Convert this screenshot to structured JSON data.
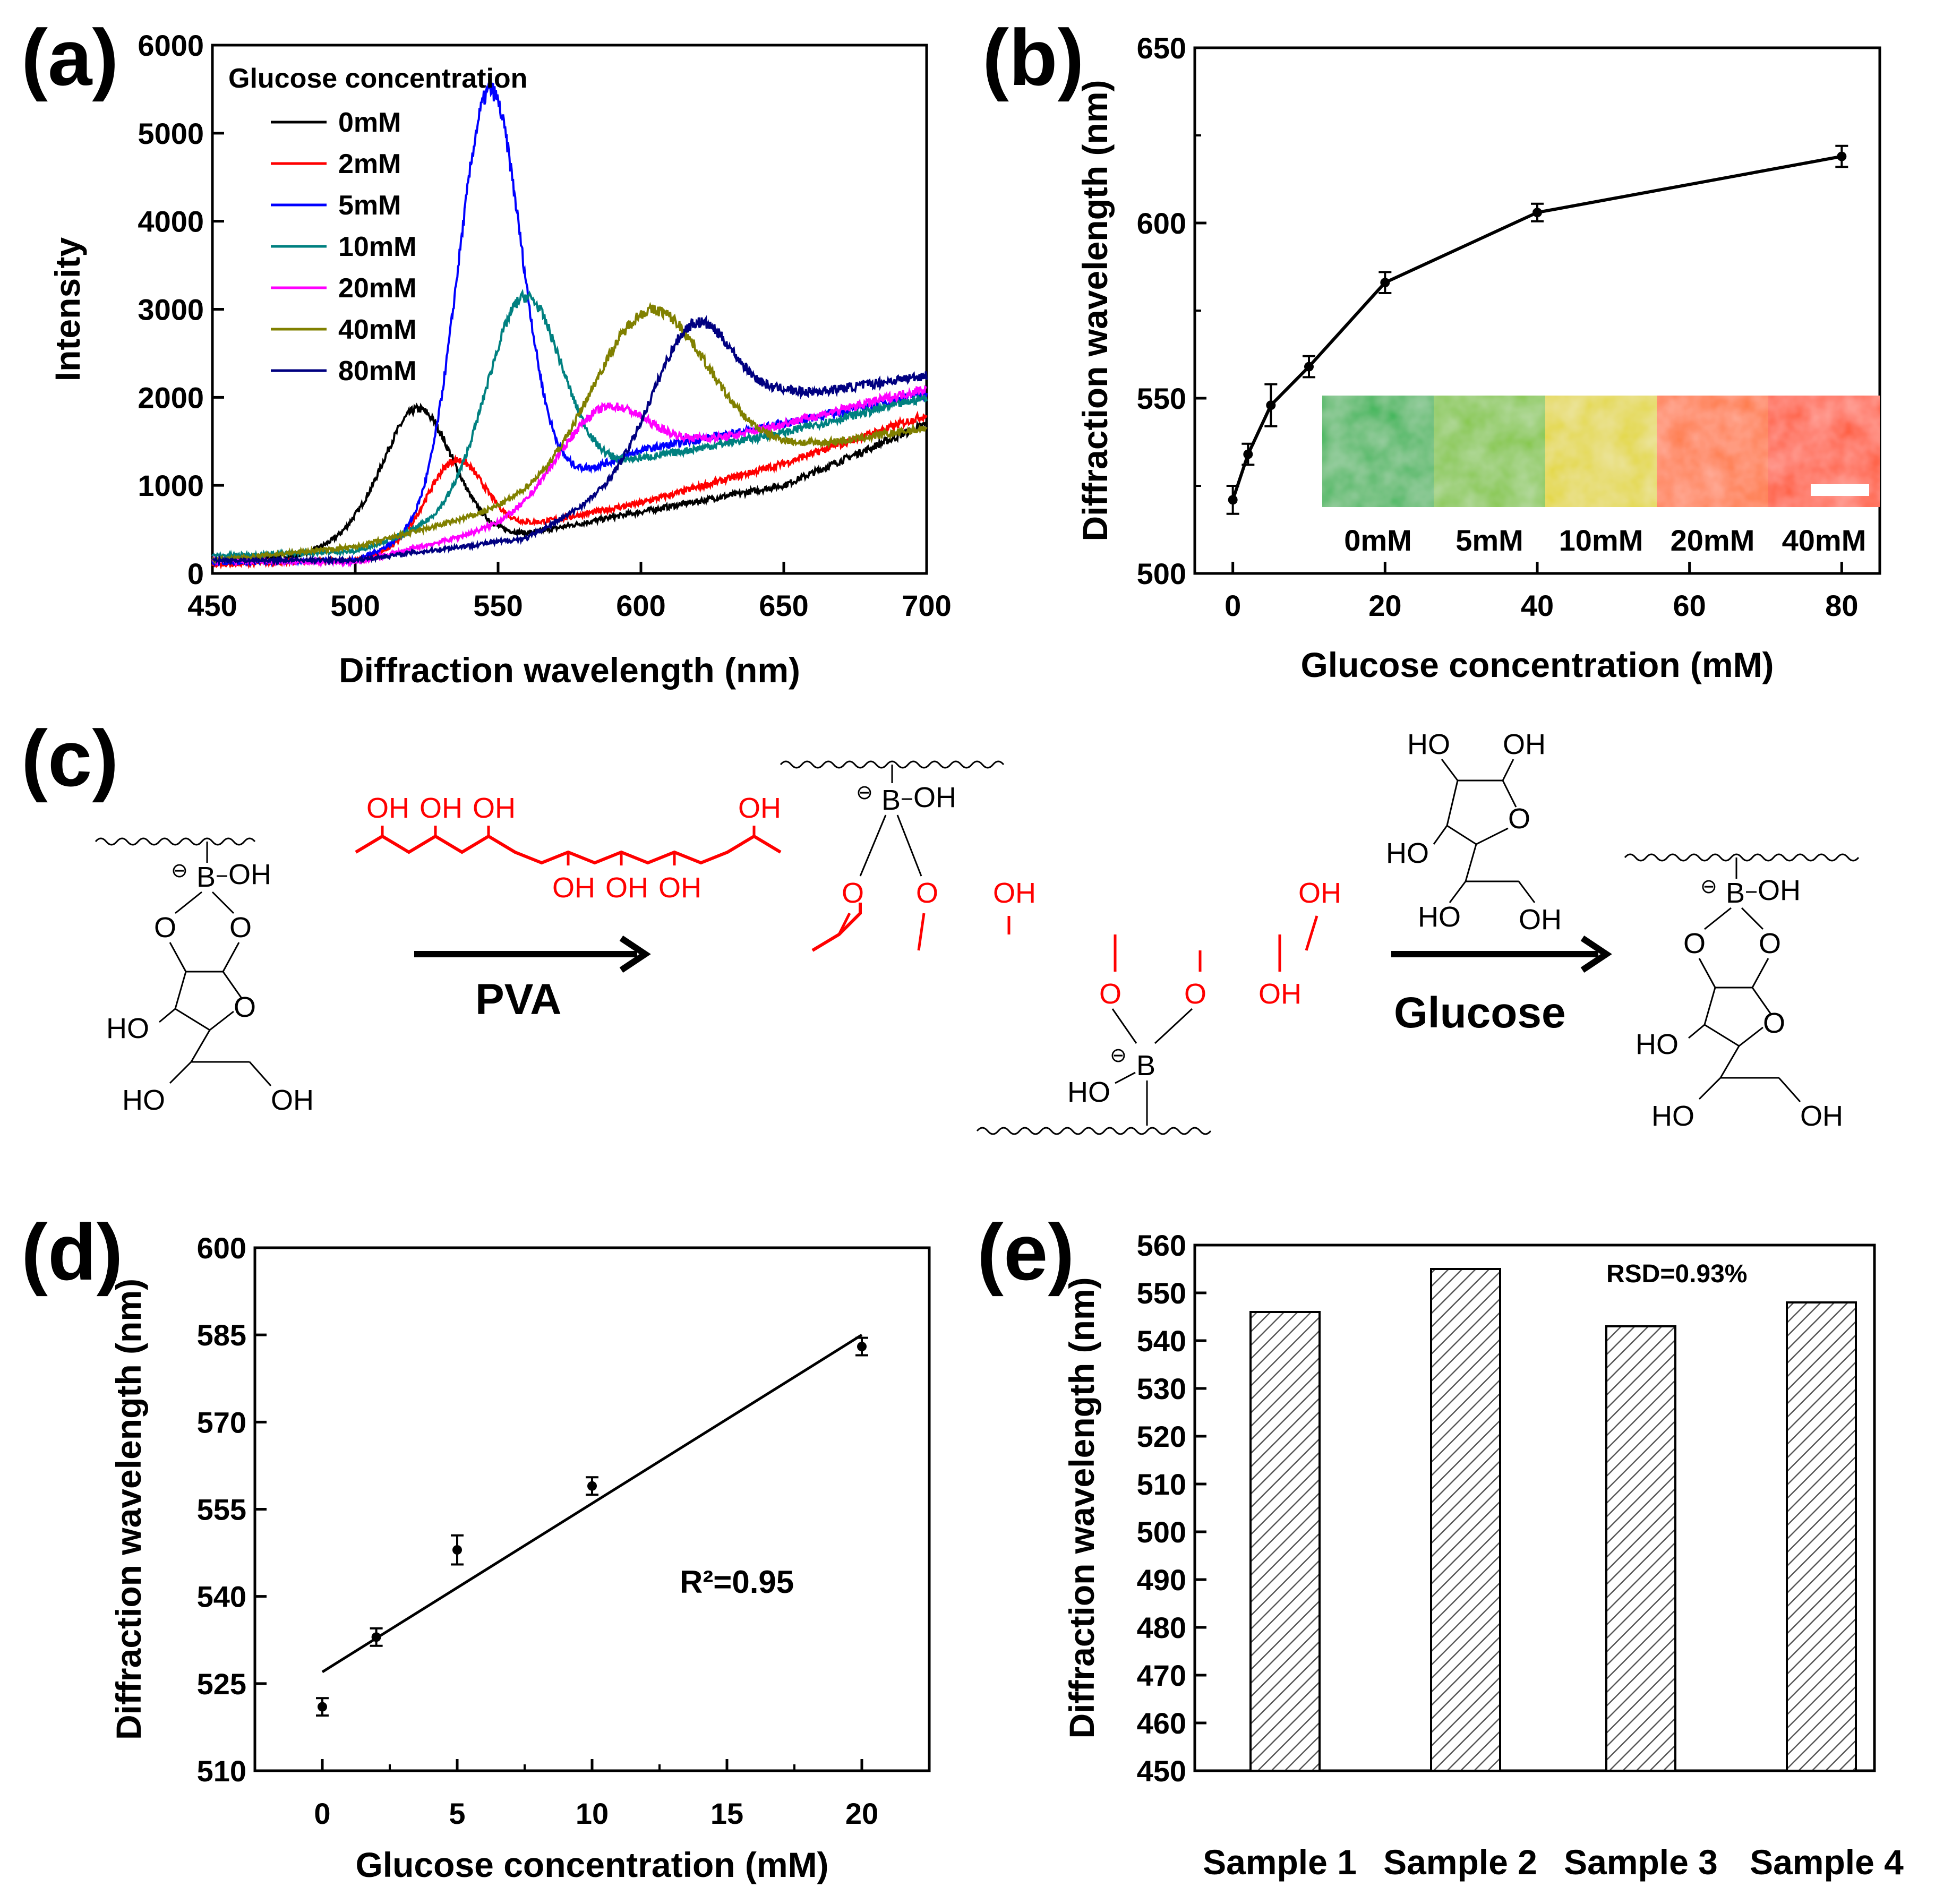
{
  "panels": {
    "a": "(a)",
    "b": "(b)",
    "c": "(c)",
    "d": "(d)",
    "e": "(e)"
  },
  "chart_data": [
    {
      "id": "a",
      "type": "line",
      "title": "",
      "xlabel": "Diffraction wavelength (nm)",
      "ylabel": "Intensity",
      "xlim": [
        450,
        700
      ],
      "ylim": [
        0,
        6000
      ],
      "xticks": [
        450,
        500,
        550,
        600,
        650,
        700
      ],
      "yticks": [
        0,
        1000,
        2000,
        3000,
        4000,
        5000,
        6000
      ],
      "legend_title": "Glucose concentration",
      "legend_position": "top-left",
      "series": [
        {
          "name": "0mM",
          "color": "#000000",
          "baseline": [
            [
              450,
              150
            ],
            [
              480,
              200
            ],
            [
              500,
              400
            ],
            [
              560,
              450
            ],
            [
              600,
              700
            ],
            [
              650,
              1000
            ],
            [
              700,
              1700
            ]
          ],
          "peaks": [
            [
              522,
              1450,
              12
            ]
          ]
        },
        {
          "name": "2mM",
          "color": "#ff0000",
          "baseline": [
            [
              450,
              100
            ],
            [
              500,
              150
            ],
            [
              540,
              420
            ],
            [
              600,
              800
            ],
            [
              650,
              1250
            ],
            [
              700,
              1800
            ]
          ],
          "peaks": [
            [
              535,
              900,
              10
            ]
          ]
        },
        {
          "name": "5mM",
          "color": "#0000ff",
          "baseline": [
            [
              450,
              120
            ],
            [
              500,
              150
            ],
            [
              560,
              900
            ],
            [
              600,
              1400
            ],
            [
              650,
              1700
            ],
            [
              700,
              2050
            ]
          ],
          "peaks": [
            [
              547,
              4750,
              11
            ]
          ]
        },
        {
          "name": "10mM",
          "color": "#008080",
          "baseline": [
            [
              450,
              200
            ],
            [
              500,
              250
            ],
            [
              550,
              800
            ],
            [
              600,
              1300
            ],
            [
              650,
              1600
            ],
            [
              700,
              2000
            ]
          ],
          "peaks": [
            [
              559,
              2250,
              13
            ]
          ]
        },
        {
          "name": "20mM",
          "color": "#ff00ff",
          "baseline": [
            [
              450,
              150
            ],
            [
              500,
              120
            ],
            [
              560,
              600
            ],
            [
              620,
              1450
            ],
            [
              650,
              1700
            ],
            [
              700,
              2100
            ]
          ],
          "peaks": [
            [
              586,
              900,
              16
            ]
          ]
        },
        {
          "name": "40mM",
          "color": "#808000",
          "baseline": [
            [
              450,
              150
            ],
            [
              500,
              300
            ],
            [
              560,
              800
            ],
            [
              650,
              1400
            ],
            [
              700,
              1650
            ]
          ],
          "peaks": [
            [
              603,
              1900,
              20
            ]
          ]
        },
        {
          "name": "80mM",
          "color": "#000080",
          "baseline": [
            [
              450,
              150
            ],
            [
              500,
              150
            ],
            [
              560,
              400
            ],
            [
              650,
              2000
            ],
            [
              700,
              2250
            ]
          ],
          "peaks": [
            [
              618,
              1400,
              14
            ]
          ]
        }
      ]
    },
    {
      "id": "b",
      "type": "line",
      "xlabel": "Glucose concentration (mM)",
      "ylabel": "Diffraction wavelength (nm)",
      "xlim": [
        -5,
        85
      ],
      "ylim": [
        500,
        650
      ],
      "xticks": [
        0,
        20,
        40,
        60,
        80
      ],
      "yticks": [
        500,
        550,
        600,
        650
      ],
      "x": [
        0,
        2,
        5,
        10,
        20,
        40,
        80
      ],
      "y": [
        521,
        534,
        548,
        559,
        583,
        603,
        619
      ],
      "errors": [
        4,
        3,
        6,
        3,
        3,
        2.5,
        3
      ],
      "inset": {
        "labels": [
          "0mM",
          "5mM",
          "10mM",
          "20mM",
          "40mM"
        ],
        "colors": [
          "#22b24a",
          "#7cc42a",
          "#e2d61c",
          "#ff6a10",
          "#ff4a10"
        ]
      }
    },
    {
      "id": "d",
      "type": "scatter",
      "xlabel": "Glucose concentration (mM)",
      "ylabel": "Diffraction wavelength (nm)",
      "xlim": [
        -2.5,
        22.5
      ],
      "ylim": [
        510,
        600
      ],
      "xticks": [
        0,
        5,
        10,
        15,
        20
      ],
      "yticks": [
        510,
        525,
        540,
        555,
        570,
        585,
        600
      ],
      "x": [
        0,
        2,
        5,
        10,
        20
      ],
      "y": [
        521,
        533,
        548,
        559,
        583
      ],
      "errors": [
        1.5,
        1.5,
        2.5,
        1.5,
        1.5
      ],
      "fit": {
        "x": [
          0,
          20
        ],
        "y": [
          527,
          585
        ]
      },
      "annotation": "R²=0.95"
    },
    {
      "id": "e",
      "type": "bar",
      "xlabel": "",
      "ylabel": "Diffraction wavelength (nm)",
      "ylim": [
        450,
        560
      ],
      "yticks": [
        450,
        460,
        470,
        480,
        490,
        500,
        510,
        520,
        530,
        540,
        550,
        560
      ],
      "categories": [
        "Sample 1",
        "Sample 2",
        "Sample 3",
        "Sample 4"
      ],
      "values": [
        546,
        555,
        543,
        548
      ],
      "annotation": "RSD=0.93%"
    }
  ],
  "scheme": {
    "pva_label": "PVA",
    "glucose_label": "Glucose",
    "oh": "OH",
    "ho": "HO",
    "o": "O",
    "b": "B",
    "minus": "⊖"
  }
}
